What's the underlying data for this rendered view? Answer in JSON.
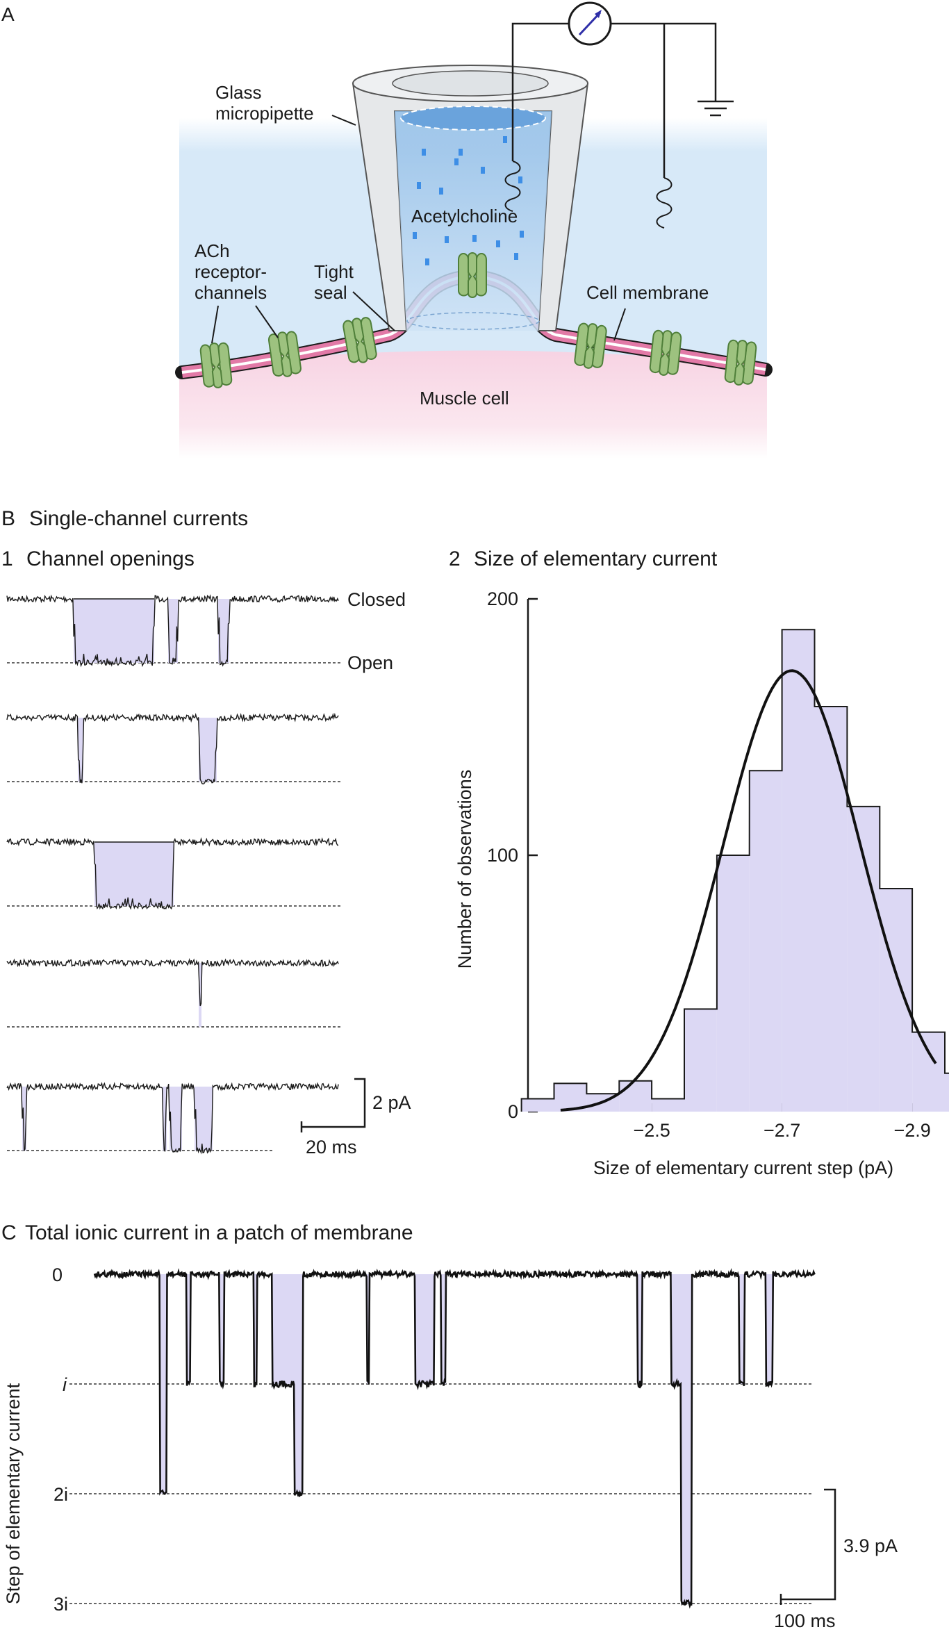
{
  "colors": {
    "bath": "#d7e9f8",
    "cell": "#f7d3e3",
    "membrane_pink": "#e27aa7",
    "channel": "#9dc27f",
    "channel_stroke": "#4f7f3a",
    "fill_lavender": "#dcd8f4",
    "pipette_glass": "#e6e8ea",
    "pipette_solution": "#a9cceb",
    "ach_dot": "#3d8ee6",
    "meter_arrow": "#2f2fa8"
  },
  "panel_a": {
    "letter": "A",
    "labels": {
      "glass": [
        "Glass",
        "micropipette"
      ],
      "ach_receptor": [
        "ACh",
        "receptor-",
        "channels"
      ],
      "tight_seal": [
        "Tight",
        "seal"
      ],
      "acetylcholine": "Acetylcholine",
      "cell_membrane": "Cell membrane",
      "muscle_cell": "Muscle cell"
    },
    "icons": [
      "ammeter-icon",
      "ground-icon",
      "electrode-coil-icon",
      "ach-receptor-channel-icon"
    ]
  },
  "panel_b": {
    "letter": "B",
    "title": "Single-channel currents",
    "sub1": {
      "number": "1",
      "title": "Channel openings",
      "closed_label": "Closed",
      "open_label": "Open",
      "scale_y": "2 pA",
      "scale_x": "20 ms"
    },
    "sub2": {
      "number": "2",
      "title": "Size of elementary current"
    }
  },
  "panel_c": {
    "letter": "C",
    "title": "Total ionic current in a patch of membrane",
    "ylabel": "Step of elementary current",
    "levels": [
      "0",
      "i",
      "2i",
      "3i"
    ],
    "scale_y": "3.9 pA",
    "scale_x": "100 ms"
  },
  "chart_data": {
    "type": "bar",
    "title": "Size of elementary current",
    "xlabel": "Size of elementary current step (pA)",
    "ylabel": "Number of observations",
    "x_ticks": [
      "−2.5",
      "−2.7",
      "−2.9"
    ],
    "y_ticks": [
      "0",
      "100",
      "200"
    ],
    "ylim": [
      0,
      200
    ],
    "xlim": [
      -2.31,
      -2.95
    ],
    "bin_width": 0.05,
    "bins": [
      {
        "x0": -2.35,
        "value": 5
      },
      {
        "x0": -2.4,
        "value": 11
      },
      {
        "x0": -2.45,
        "value": 7
      },
      {
        "x0": -2.5,
        "value": 12
      },
      {
        "x0": -2.55,
        "value": 5
      },
      {
        "x0": -2.6,
        "value": 40
      },
      {
        "x0": -2.65,
        "value": 100
      },
      {
        "x0": -2.7,
        "value": 133
      },
      {
        "x0": -2.75,
        "value": 188
      },
      {
        "x0": -2.8,
        "value": 158
      },
      {
        "x0": -2.85,
        "value": 119
      },
      {
        "x0": -2.9,
        "value": 87
      },
      {
        "x0": -2.95,
        "value": 31
      },
      {
        "x0": -3.0,
        "value": 15
      }
    ],
    "fit": {
      "type": "gaussian",
      "mean": -2.715,
      "sd": 0.105,
      "peak": 172
    }
  }
}
